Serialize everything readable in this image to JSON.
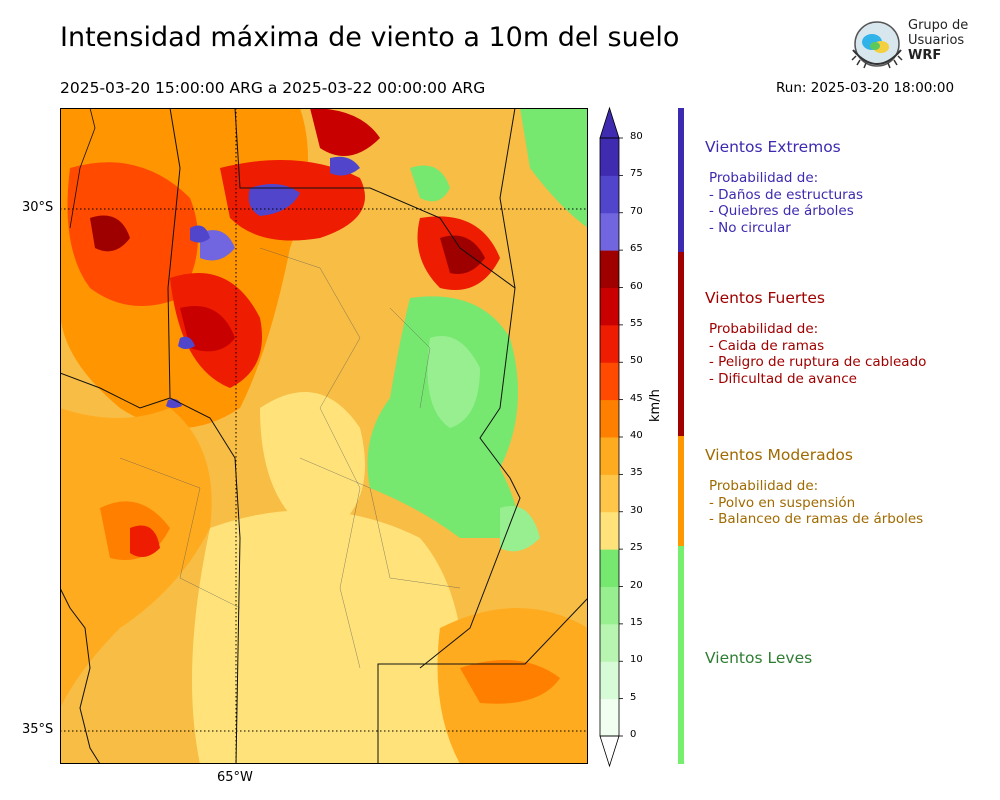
{
  "header": {
    "title": "Intensidad máxima de viento a 10m del suelo",
    "period": "2025-03-20 15:00:00 ARG  a  2025-03-22 00:00:00 ARG",
    "run": "Run: 2025-03-20 18:00:00"
  },
  "logo": {
    "line1": "Grupo de",
    "line2": "Usuarios",
    "line3": "WRF"
  },
  "map": {
    "lat_labels": [
      "30°S",
      "35°S"
    ],
    "lon_label": "65°W",
    "gridlines": "dotted"
  },
  "colorbar": {
    "unit": "km/h",
    "ticks": [
      "0",
      "5",
      "10",
      "15",
      "20",
      "25",
      "30",
      "35",
      "40",
      "45",
      "50",
      "55",
      "60",
      "65",
      "70",
      "75",
      "80"
    ],
    "colors": [
      "#f0fff0",
      "#d6fbd6",
      "#b8f5b0",
      "#98ef90",
      "#76e870",
      "#ffe37a",
      "#ffc64a",
      "#ffab1f",
      "#ff7f00",
      "#ff4a00",
      "#ee1c00",
      "#c80000",
      "#9e0000",
      "#7165e0",
      "#5145cc",
      "#3e2bb0"
    ],
    "under_color": "#ffffff",
    "over_color": "#3e2bb0"
  },
  "categories": [
    {
      "title": "Vientos Extremos",
      "color": "#3c2ab0",
      "bar_color": "#3c2ab0",
      "lines": [
        "Probabilidad de:",
        "- Daños de estructuras",
        "- Quiebres de árboles",
        "- No circular"
      ]
    },
    {
      "title": "Vientos Fuertes",
      "color": "#a00000",
      "bar_color": "#a00000",
      "lines": [
        "Probabilidad de:",
        "- Caida de ramas",
        "- Peligro de ruptura de cableado",
        "- Dificultad de avance"
      ]
    },
    {
      "title": "Vientos Moderados",
      "color": "#a06a00",
      "bar_color": "#ff9800",
      "lines": [
        "Probabilidad de:",
        "- Polvo en suspensión",
        "- Balanceo de ramas de árboles"
      ]
    },
    {
      "title": "Vientos Leves",
      "color": "#2e7d32",
      "bar_color": "#76ee6e",
      "lines": []
    }
  ]
}
